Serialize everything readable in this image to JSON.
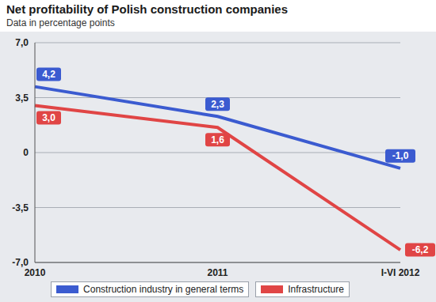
{
  "chart_data": {
    "type": "line",
    "title": "Net profitability of Polish construction companies",
    "subtitle": "Data in percentage points",
    "categories": [
      "2010",
      "2011",
      "I-VI 2012"
    ],
    "series": [
      {
        "name": "Construction industry in general terms",
        "color": "#3b5bd0",
        "line_style": "solid",
        "values": [
          4.2,
          2.3,
          -1.0
        ],
        "value_labels": [
          "4,2",
          "2,3",
          "-1,0"
        ]
      },
      {
        "name": "Infrastructure",
        "color": "#e04545",
        "line_style": "solid",
        "values": [
          3.0,
          1.6,
          -6.2
        ],
        "value_labels": [
          "3,0",
          "1,6",
          "-6,2"
        ]
      }
    ],
    "ylim": [
      -7,
      7
    ],
    "yticks": [
      {
        "value": 7,
        "label": "7,0"
      },
      {
        "value": 3.5,
        "label": "3,5"
      },
      0,
      {
        "value": -3.5,
        "label": "-3,5"
      },
      {
        "value": -7,
        "label": "-7,0"
      }
    ],
    "grid": true,
    "legend": "bottom",
    "data_labels": true
  }
}
